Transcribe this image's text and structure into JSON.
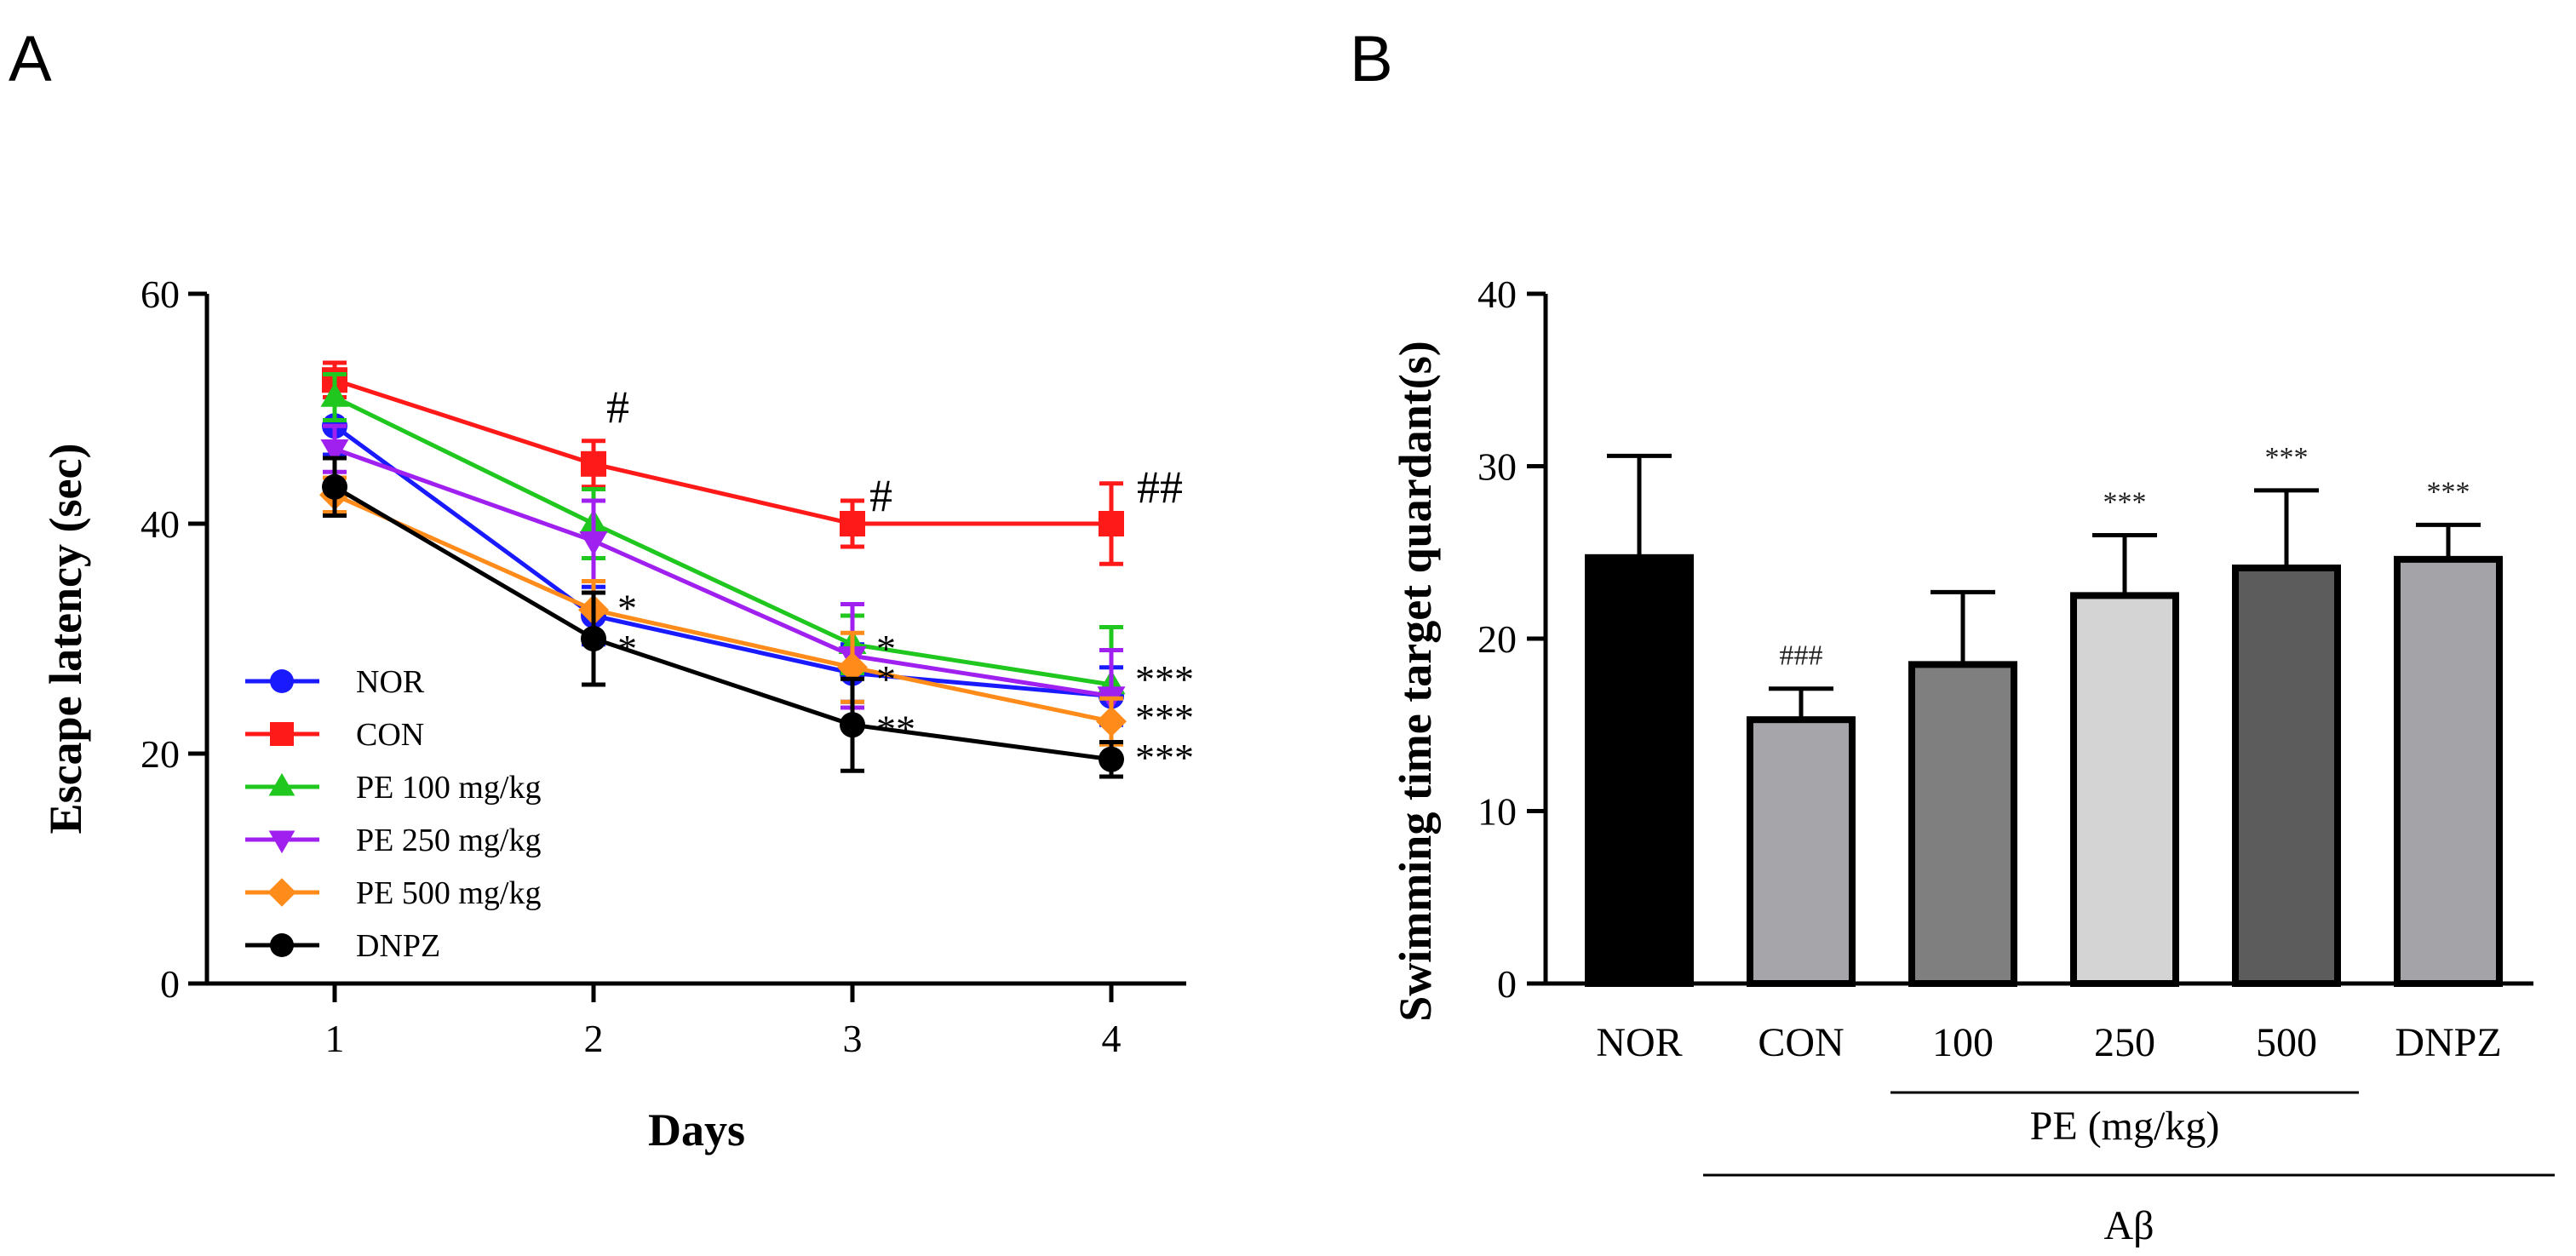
{
  "chart_data": [
    {
      "panel": "A",
      "type": "line",
      "xlabel": "Days",
      "ylabel": "Escape latency (sec)",
      "x": [
        1,
        2,
        3,
        4
      ],
      "x_ticks": [
        "1",
        "2",
        "3",
        "4"
      ],
      "y_ticks": [
        "0",
        "20",
        "40",
        "60"
      ],
      "ylim": [
        0,
        60
      ],
      "legend_position": "bottom-left",
      "series": [
        {
          "name": "NOR",
          "color": "#1a1aff",
          "marker": "circle",
          "values": [
            48.5,
            32,
            27,
            25
          ],
          "err": [
            2.5,
            2.5,
            2.5,
            2.5
          ]
        },
        {
          "name": "CON",
          "color": "#ff1a1a",
          "marker": "square",
          "values": [
            52.5,
            45.2,
            40,
            40
          ],
          "err": [
            1.5,
            2,
            2,
            3.5
          ]
        },
        {
          "name": "PE 100 mg/kg",
          "color": "#1fc71f",
          "marker": "triangle-up",
          "values": [
            51,
            40,
            29.5,
            26
          ],
          "err": [
            2,
            3,
            2.5,
            5
          ]
        },
        {
          "name": "PE 250 mg/kg",
          "color": "#a020f0",
          "marker": "triangle-down",
          "values": [
            46.5,
            38.5,
            28.5,
            25
          ],
          "err": [
            2,
            3.5,
            4.5,
            4
          ]
        },
        {
          "name": "PE 500 mg/kg",
          "color": "#ff8c1a",
          "marker": "diamond",
          "values": [
            42.5,
            32.5,
            27.5,
            22.8
          ],
          "err": [
            1.5,
            2.5,
            3,
            2
          ]
        },
        {
          "name": "DNPZ",
          "color": "#000000",
          "marker": "circle",
          "values": [
            43.2,
            30,
            22.5,
            19.5
          ],
          "err": [
            2.5,
            4,
            4,
            1.5
          ]
        }
      ],
      "annotations": [
        {
          "text": "#",
          "x": 2,
          "anchor": "CON"
        },
        {
          "text": "#",
          "x": 3,
          "anchor": "CON"
        },
        {
          "text": "##",
          "x": 4,
          "anchor": "CON"
        },
        {
          "text": "*",
          "x": 2,
          "y": 33
        },
        {
          "text": "*",
          "x": 2,
          "y": 29.5
        },
        {
          "text": "*",
          "x": 3,
          "y": 29.5
        },
        {
          "text": "*",
          "x": 3,
          "y": 26.8
        },
        {
          "text": "**",
          "x": 3,
          "y": 22.5
        },
        {
          "text": "***",
          "x": 4,
          "y": 26.8
        },
        {
          "text": "***",
          "x": 4,
          "y": 23.5
        },
        {
          "text": "***",
          "x": 4,
          "y": 20
        }
      ]
    },
    {
      "panel": "B",
      "type": "bar",
      "ylabel": "Swimming time target quardant(s)",
      "categories": [
        "NOR",
        "CON",
        "100",
        "250",
        "500",
        "DNPZ"
      ],
      "values": [
        24.7,
        15.3,
        18.5,
        22.5,
        24.1,
        24.6
      ],
      "errors": [
        5.9,
        1.8,
        4.2,
        3.5,
        4.5,
        2.0
      ],
      "colors": [
        "#000000",
        "#a6a6aa",
        "#7f7f7f",
        "#d4d4d4",
        "#5c5c5c",
        "#a3a3a8"
      ],
      "significance": [
        "",
        "###",
        "",
        "***",
        "***",
        "***"
      ],
      "y_ticks": [
        "0",
        "10",
        "20",
        "30",
        "40"
      ],
      "ylim": [
        0,
        40
      ],
      "group_labels": [
        {
          "label": "PE (mg/kg)",
          "spans": [
            "100",
            "500"
          ]
        },
        {
          "label": "Aβ",
          "spans": [
            "CON",
            "DNPZ"
          ]
        }
      ]
    }
  ],
  "panels": {
    "a_label": "A",
    "b_label": "B"
  }
}
